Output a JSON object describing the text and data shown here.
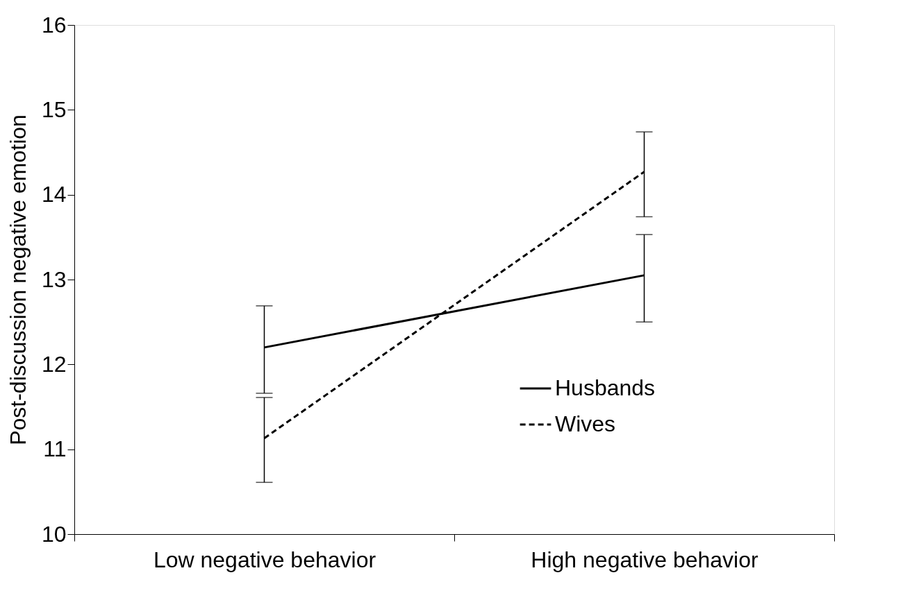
{
  "chart_data": {
    "type": "line",
    "ylabel": "Post-discussion negative emotion",
    "categories": [
      "Low negative behavior",
      "High negative behavior"
    ],
    "series": [
      {
        "name": "Husbands",
        "color": "#000000",
        "line_style": "solid",
        "values": [
          12.2,
          13.05
        ],
        "errors": [
          [
            11.66,
            12.69
          ],
          [
            12.5,
            13.53
          ]
        ]
      },
      {
        "name": "Wives",
        "color": "#000000",
        "line_style": "dashed",
        "values": [
          11.13,
          14.27
        ],
        "errors": [
          [
            10.61,
            11.61
          ],
          [
            13.74,
            14.74
          ]
        ]
      }
    ],
    "ylim": [
      10,
      16
    ],
    "yticks": [
      10,
      11,
      12,
      13,
      14,
      15,
      16
    ],
    "grid": false,
    "legend": "right",
    "marker": "none"
  }
}
